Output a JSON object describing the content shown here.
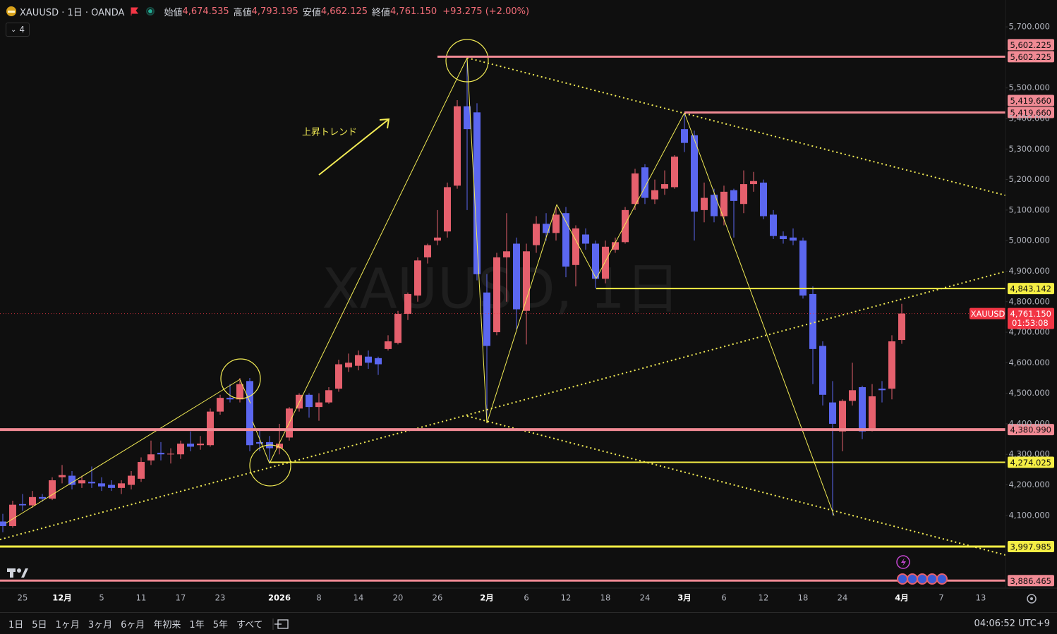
{
  "header": {
    "symbol": "XAUUSD · 1日 · OANDA",
    "fields": [
      {
        "label": "始値",
        "value": "4,674.535"
      },
      {
        "label": "高値",
        "value": "4,793.195"
      },
      {
        "label": "安値",
        "value": "4,662.125"
      },
      {
        "label": "終値",
        "value": "4,761.150"
      }
    ],
    "change": "+93.275 (+2.00%)",
    "indicators": 4
  },
  "toolbar": {
    "ranges": [
      "1日",
      "5日",
      "1ヶ月",
      "3ヶ月",
      "6ヶ月",
      "年初来",
      "1年",
      "5年",
      "すべて"
    ],
    "clock": "04:06:52 UTC+9"
  },
  "chart_data": {
    "type": "candlestick",
    "watermark": "XAUUSD, 1日",
    "annotation": "上昇トレンド",
    "up_color": "#e5606d",
    "down_color": "#5b67f0",
    "categories": [
      null,
      null,
      "25",
      null,
      null,
      null,
      "12月",
      null,
      null,
      null,
      "5",
      null,
      null,
      null,
      "11",
      null,
      null,
      null,
      "17",
      null,
      null,
      null,
      "23",
      null,
      null,
      null,
      null,
      null,
      "2026",
      null,
      null,
      null,
      "8",
      null,
      null,
      null,
      "14",
      null,
      null,
      null,
      "20",
      null,
      null,
      null,
      "26",
      null,
      null,
      null,
      null,
      "2月",
      null,
      null,
      null,
      "6",
      null,
      null,
      null,
      "12",
      null,
      null,
      null,
      "18",
      null,
      null,
      null,
      "24",
      null,
      null,
      null,
      "3月",
      null,
      null,
      null,
      "6",
      null,
      null,
      null,
      "12",
      null,
      null,
      null,
      "18",
      null,
      null,
      null,
      "24",
      null,
      null,
      null,
      null,
      null,
      "4月",
      null,
      null,
      null,
      "7",
      null,
      null,
      null,
      "13",
      null,
      null
    ],
    "open": [
      4080,
      4065,
      4137,
      4133,
      4160,
      4155,
      4225,
      4230,
      4205,
      4210,
      4205,
      4200,
      4190,
      4200,
      4220,
      4280,
      4305,
      4300,
      4300,
      4335,
      4330,
      4330,
      4440,
      4485,
      4480,
      4540,
      4340,
      4340,
      4320,
      4355,
      4450,
      4495,
      4455,
      4470,
      4515,
      4585,
      4590,
      4620,
      4615,
      4645,
      4665,
      4760,
      4820,
      4945,
      5000,
      5030,
      5180,
      5440,
      5420,
      4830,
      4700,
      4945,
      4990,
      4770,
      4985,
      5055,
      5025,
      5090,
      4920,
      5020,
      4990,
      4875,
      4970,
      4995,
      5120,
      5240,
      5135,
      5170,
      5175,
      5365,
      5345,
      5100,
      5150,
      5080,
      5165,
      5120,
      5185,
      5190,
      5085,
      5015,
      5010,
      5000,
      4825,
      4655,
      4470,
      4375,
      4475,
      4520,
      4385,
      4515,
      4515,
      4674.535,
      null,
      null,
      null,
      null,
      null,
      null,
      null,
      null,
      null,
      null
    ],
    "high": [
      4105,
      4148,
      4170,
      4180,
      4170,
      4225,
      4265,
      4245,
      4230,
      4260,
      4225,
      4215,
      4215,
      4245,
      4290,
      4345,
      4340,
      4320,
      4345,
      4375,
      4360,
      4450,
      4495,
      4530,
      4550,
      4550,
      4380,
      4360,
      4400,
      4455,
      4500,
      4500,
      4500,
      4520,
      4610,
      4630,
      4640,
      4640,
      4620,
      4690,
      4770,
      4830,
      4945,
      4990,
      5100,
      5190,
      5460,
      5602.225,
      5450,
      4890,
      4960,
      5090,
      5010,
      4990,
      5080,
      5090,
      5110,
      5110,
      5050,
      5040,
      5000,
      5000,
      5010,
      5110,
      5235,
      5250,
      5200,
      5230,
      5280,
      5419.66,
      5360,
      5190,
      5170,
      5180,
      5170,
      5230,
      5225,
      5200,
      5100,
      5030,
      5040,
      5010,
      4850,
      4670,
      4540,
      4480,
      4600,
      4525,
      4530,
      4540,
      4690,
      4793.195,
      null,
      null,
      null,
      null,
      null,
      null,
      null,
      null,
      null,
      null
    ],
    "low": [
      4045,
      4060,
      4115,
      4125,
      4145,
      4150,
      4205,
      4185,
      4190,
      4190,
      4180,
      4180,
      4170,
      4185,
      4210,
      4265,
      4280,
      4270,
      4285,
      4310,
      4315,
      4325,
      4430,
      4470,
      4470,
      4310,
      4310,
      4274,
      4300,
      4345,
      4440,
      4420,
      4410,
      4465,
      4505,
      4570,
      4575,
      4580,
      4560,
      4640,
      4660,
      4740,
      4800,
      4925,
      4985,
      5010,
      5170,
      5100,
      4870,
      4402,
      4690,
      4800,
      4710,
      4660,
      4960,
      5000,
      5000,
      4880,
      4850,
      4970,
      4843.142,
      4860,
      4960,
      4990,
      5100,
      5120,
      5120,
      5150,
      5170,
      5290,
      5000,
      5060,
      5060,
      5050,
      5010,
      5090,
      5160,
      5070,
      5005,
      4990,
      4985,
      4810,
      4530,
      4460,
      4100,
      4310,
      4460,
      4350,
      4375,
      4470,
      4480,
      4662.125,
      null,
      null,
      null,
      null,
      null,
      null,
      null,
      null,
      null,
      null
    ],
    "close": [
      4065,
      4135,
      4133,
      4160,
      4155,
      4215,
      4232,
      4200,
      4215,
      4205,
      4195,
      4190,
      4205,
      4230,
      4275,
      4300,
      4300,
      4302,
      4335,
      4325,
      4335,
      4440,
      4485,
      4480,
      4530,
      4330,
      4335,
      4320,
      4335,
      4450,
      4495,
      4455,
      4470,
      4510,
      4595,
      4600,
      4625,
      4600,
      4595,
      4670,
      4760,
      4825,
      4935,
      4985,
      5010,
      5175,
      5440,
      5365,
      4890,
      4655,
      4945,
      4965,
      4775,
      4965,
      5055,
      5025,
      5085,
      4915,
      5040,
      4990,
      4875,
      4980,
      4995,
      5100,
      5220,
      5140,
      5165,
      5185,
      5275,
      5320,
      5095,
      5140,
      5080,
      5160,
      5130,
      5185,
      5195,
      5080,
      5015,
      5005,
      5000,
      4820,
      4645,
      4495,
      4400,
      4475,
      4510,
      4375,
      4490,
      4510,
      4670,
      4761.15,
      null,
      null,
      null,
      null,
      null,
      null,
      null,
      null,
      null,
      null
    ],
    "ylim": [
      3864,
      5788
    ],
    "yticks": [
      {
        "value": 5700,
        "label": "5,700.000"
      },
      {
        "value": 5500,
        "label": "5,500.000"
      },
      {
        "value": 5400,
        "label": "5,400.000"
      },
      {
        "value": 5300,
        "label": "5,300.000"
      },
      {
        "value": 5200,
        "label": "5,200.000"
      },
      {
        "value": 5100,
        "label": "5,100.000"
      },
      {
        "value": 5000,
        "label": "5,000.000"
      },
      {
        "value": 4900,
        "label": "4,900.000"
      },
      {
        "value": 4800,
        "label": "4,800.000"
      },
      {
        "value": 4700,
        "label": "4,700.000"
      },
      {
        "value": 4600,
        "label": "4,600.000"
      },
      {
        "value": 4500,
        "label": "4,500.000"
      },
      {
        "value": 4400,
        "label": "4,400.000"
      },
      {
        "value": 4300,
        "label": "4,300.000"
      },
      {
        "value": 4200,
        "label": "4,200.000"
      },
      {
        "value": 4100,
        "label": "4,100.000"
      }
    ],
    "levels": [
      {
        "value": 5602.225,
        "label": "5,602.225",
        "color": "#f08a94"
      },
      {
        "value": 5419.66,
        "label": "5,419.660",
        "color": "#f08a94"
      },
      {
        "value": 4843.142,
        "label": "4,843.142",
        "color": "#f5ee45"
      },
      {
        "value": 4380.99,
        "label": "4,380.990",
        "color": "#f08a94"
      },
      {
        "value": 4274.025,
        "label": "4,274.025",
        "color": "#f5ee45"
      },
      {
        "value": 3997.985,
        "label": "3,997.985",
        "color": "#f5ee45"
      },
      {
        "value": 3886.465,
        "label": "3,886.465",
        "color": "#f08a94"
      }
    ],
    "last": {
      "symbol": "XAUUSD",
      "value": 4761.15,
      "label": "4,761.150",
      "countdown": "01:53:08",
      "color": "#f23645"
    }
  }
}
